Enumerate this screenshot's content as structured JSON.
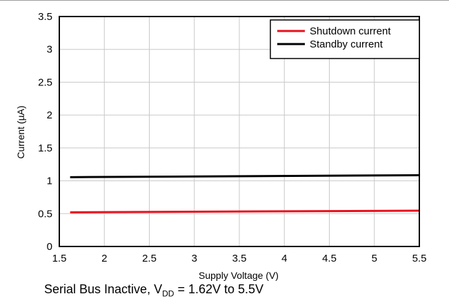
{
  "chart_data": {
    "type": "line",
    "xlabel": "Supply Voltage (V)",
    "ylabel": "Current (µA)",
    "xlim": [
      1.5,
      5.5
    ],
    "ylim": [
      0,
      3.5
    ],
    "xticks": [
      "1.5",
      "2",
      "2.5",
      "3",
      "3.5",
      "4",
      "4.5",
      "5",
      "5.5"
    ],
    "yticks": [
      "0",
      "0.5",
      "1",
      "1.5",
      "2",
      "2.5",
      "3",
      "3.5"
    ],
    "grid": true,
    "legend": "top-right",
    "series": [
      {
        "name": "Shutdown current",
        "color": "#e8101c",
        "x": [
          1.62,
          5.5
        ],
        "y": [
          0.52,
          0.545
        ]
      },
      {
        "name": "Standby current",
        "color": "#000000",
        "x": [
          1.62,
          5.5
        ],
        "y": [
          1.055,
          1.085
        ]
      }
    ]
  },
  "caption": {
    "prefix": "Serial Bus Inactive, V",
    "sub": "DD",
    "suffix": " = 1.62V to 5.5V"
  }
}
